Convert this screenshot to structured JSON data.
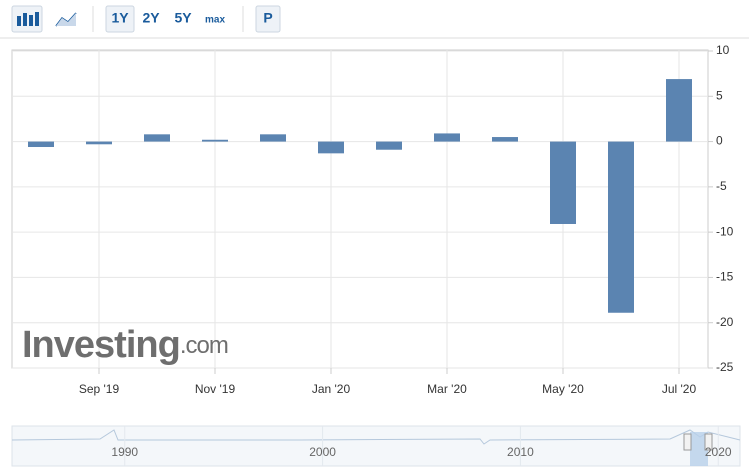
{
  "toolbar": {
    "buttons": [
      "1Y",
      "2Y",
      "5Y",
      "max",
      "P"
    ]
  },
  "watermark": {
    "brand": "Investing",
    "suffix": ".com"
  },
  "chart_data": {
    "type": "bar",
    "categories": [
      null,
      "Sep '19",
      null,
      "Nov '19",
      null,
      "Jan '20",
      null,
      "Mar '20",
      null,
      "May '20",
      null,
      "Jul '20"
    ],
    "values": [
      -0.6,
      -0.3,
      0.8,
      0.2,
      0.8,
      -1.3,
      -0.9,
      0.9,
      0.5,
      -9.1,
      -18.9,
      6.9
    ],
    "color": "#5b84b1",
    "ylim": [
      -25,
      10
    ],
    "yticks": [
      -25,
      -20,
      -15,
      -10,
      -5,
      0,
      5,
      10
    ],
    "grid": true
  },
  "navigator": {
    "xlim": [
      1984.3,
      2021.1
    ],
    "xticks": [
      1990,
      2000,
      2010,
      2020
    ]
  }
}
